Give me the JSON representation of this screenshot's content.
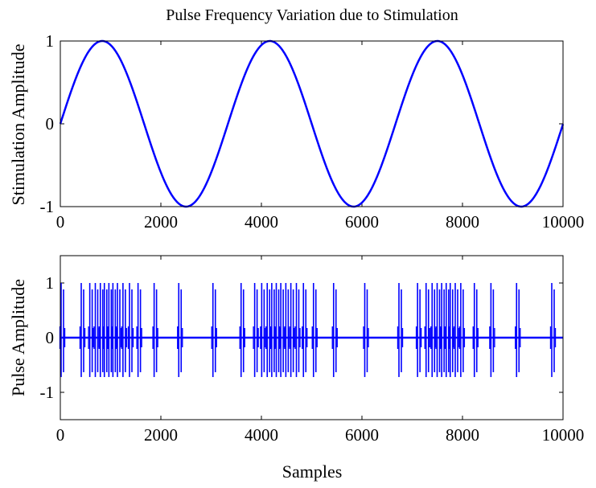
{
  "chart_data": [
    {
      "type": "line",
      "title": "Pulse Frequency Variation due to Stimulation",
      "xlabel": "",
      "ylabel": "Stimulation Amplitude",
      "xlim": [
        0,
        10000
      ],
      "ylim": [
        -1,
        1
      ],
      "xticks": [
        0,
        2000,
        4000,
        6000,
        8000,
        10000
      ],
      "yticks": [
        -1,
        0,
        1
      ],
      "xtick_labels": [
        "0",
        "2000",
        "4000",
        "6000",
        "8000",
        "10000"
      ],
      "ytick_labels": [
        "-1",
        "0",
        "1"
      ],
      "series": [
        {
          "function": "sin(2*pi*x/3333)",
          "x": [
            0,
            833,
            1667,
            2500,
            3333,
            4167,
            5000,
            5833,
            6667,
            7500,
            8333,
            9167,
            10000
          ],
          "y": [
            0,
            1,
            0,
            -1,
            0,
            1,
            0,
            -1,
            0,
            1,
            0,
            -1,
            0
          ]
        }
      ],
      "color": "#0000ff",
      "grid": false
    },
    {
      "type": "line",
      "title": "",
      "xlabel": "Samples",
      "ylabel": "Pulse Amplitude",
      "xlim": [
        0,
        10000
      ],
      "ylim": [
        -1.5,
        1.5
      ],
      "xticks": [
        0,
        2000,
        4000,
        6000,
        8000,
        10000
      ],
      "yticks": [
        -1,
        0,
        1
      ],
      "xtick_labels": [
        "0",
        "2000",
        "4000",
        "6000",
        "8000",
        "10000"
      ],
      "ytick_labels": [
        "-1",
        "0",
        "1"
      ],
      "baseline": 0,
      "pulse_peak": 1,
      "pulse_trough": -0.72,
      "pulse_positions": [
        40,
        440,
        610,
        720,
        820,
        900,
        990,
        1070,
        1160,
        1270,
        1400,
        1570,
        1890,
        2380,
        3060,
        3620,
        3890,
        4030,
        4140,
        4230,
        4320,
        4410,
        4510,
        4610,
        4720,
        4860,
        5060,
        5460,
        6080,
        6760,
        7130,
        7300,
        7420,
        7520,
        7610,
        7700,
        7780,
        7880,
        7990,
        8260,
        8590,
        9100,
        9800
      ],
      "color": "#0000ff",
      "grid": false
    }
  ]
}
